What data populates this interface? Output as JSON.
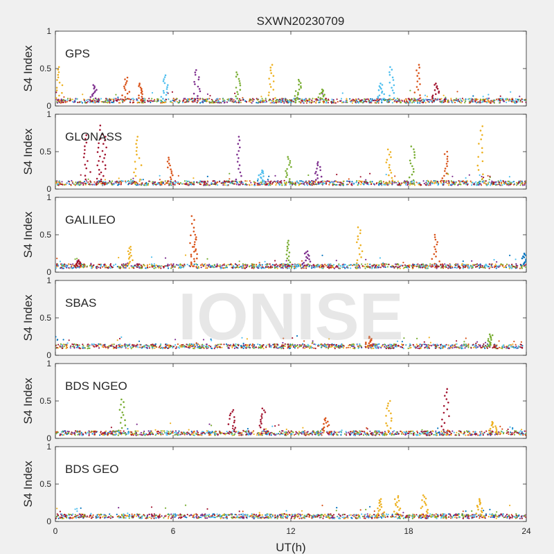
{
  "chart_data": {
    "type": "scatter",
    "title": "SXWN20230709",
    "xlabel": "UT(h)",
    "ylabel": "S4 Index",
    "xlim": [
      0,
      24
    ],
    "ylim": [
      0,
      1
    ],
    "x_ticks": [
      "0",
      "6",
      "12",
      "18",
      "24"
    ],
    "y_ticks": [
      "0",
      "0.5",
      "1"
    ],
    "grid": false,
    "watermark": "IONISE",
    "series_colors": [
      "#0072bd",
      "#d95319",
      "#edb120",
      "#7e2f8e",
      "#77ac30",
      "#4dbeee",
      "#a2142f"
    ],
    "panels": [
      {
        "name": "GPS",
        "baseline_s4": 0.07,
        "spikes": [
          {
            "ut": 0.2,
            "s4": 0.52,
            "color": "#edb120"
          },
          {
            "ut": 2.0,
            "s4": 0.28,
            "color": "#7e2f8e"
          },
          {
            "ut": 3.6,
            "s4": 0.38,
            "color": "#d95319"
          },
          {
            "ut": 4.3,
            "s4": 0.3,
            "color": "#d95319"
          },
          {
            "ut": 5.6,
            "s4": 0.41,
            "color": "#4dbeee"
          },
          {
            "ut": 7.2,
            "s4": 0.48,
            "color": "#7e2f8e"
          },
          {
            "ut": 9.3,
            "s4": 0.45,
            "color": "#77ac30"
          },
          {
            "ut": 11.0,
            "s4": 0.55,
            "color": "#edb120"
          },
          {
            "ut": 12.4,
            "s4": 0.35,
            "color": "#77ac30"
          },
          {
            "ut": 13.6,
            "s4": 0.22,
            "color": "#77ac30"
          },
          {
            "ut": 16.6,
            "s4": 0.3,
            "color": "#4dbeee"
          },
          {
            "ut": 17.1,
            "s4": 0.52,
            "color": "#4dbeee"
          },
          {
            "ut": 18.5,
            "s4": 0.55,
            "color": "#d95319"
          },
          {
            "ut": 19.4,
            "s4": 0.3,
            "color": "#a2142f"
          }
        ]
      },
      {
        "name": "GLONASS",
        "baseline_s4": 0.08,
        "spikes": [
          {
            "ut": 1.6,
            "s4": 0.72,
            "color": "#a2142f"
          },
          {
            "ut": 2.3,
            "s4": 0.85,
            "color": "#a2142f"
          },
          {
            "ut": 2.5,
            "s4": 0.7,
            "color": "#a2142f"
          },
          {
            "ut": 4.2,
            "s4": 0.7,
            "color": "#edb120"
          },
          {
            "ut": 5.8,
            "s4": 0.42,
            "color": "#d95319"
          },
          {
            "ut": 9.4,
            "s4": 0.7,
            "color": "#7e2f8e"
          },
          {
            "ut": 10.5,
            "s4": 0.25,
            "color": "#4dbeee"
          },
          {
            "ut": 11.9,
            "s4": 0.43,
            "color": "#77ac30"
          },
          {
            "ut": 13.4,
            "s4": 0.36,
            "color": "#7e2f8e"
          },
          {
            "ut": 17.0,
            "s4": 0.53,
            "color": "#edb120"
          },
          {
            "ut": 18.2,
            "s4": 0.57,
            "color": "#77ac30"
          },
          {
            "ut": 19.9,
            "s4": 0.5,
            "color": "#d95319"
          },
          {
            "ut": 21.7,
            "s4": 0.84,
            "color": "#edb120"
          }
        ]
      },
      {
        "name": "GALILEO",
        "baseline_s4": 0.08,
        "spikes": [
          {
            "ut": 1.2,
            "s4": 0.16,
            "color": "#a2142f"
          },
          {
            "ut": 3.8,
            "s4": 0.34,
            "color": "#edb120"
          },
          {
            "ut": 7.0,
            "s4": 0.75,
            "color": "#d95319"
          },
          {
            "ut": 7.1,
            "s4": 0.5,
            "color": "#d95319"
          },
          {
            "ut": 11.9,
            "s4": 0.42,
            "color": "#77ac30"
          },
          {
            "ut": 12.8,
            "s4": 0.28,
            "color": "#7e2f8e"
          },
          {
            "ut": 15.5,
            "s4": 0.6,
            "color": "#edb120"
          },
          {
            "ut": 19.4,
            "s4": 0.5,
            "color": "#d95319"
          },
          {
            "ut": 23.9,
            "s4": 0.25,
            "color": "#0072bd"
          }
        ]
      },
      {
        "name": "SBAS",
        "baseline_s4": 0.12,
        "spikes": [
          {
            "ut": 16.0,
            "s4": 0.25,
            "color": "#d95319"
          },
          {
            "ut": 22.2,
            "s4": 0.28,
            "color": "#77ac30"
          }
        ]
      },
      {
        "name": "BDS NGEO",
        "baseline_s4": 0.07,
        "spikes": [
          {
            "ut": 3.4,
            "s4": 0.52,
            "color": "#77ac30"
          },
          {
            "ut": 9.0,
            "s4": 0.38,
            "color": "#a2142f"
          },
          {
            "ut": 10.6,
            "s4": 0.4,
            "color": "#a2142f"
          },
          {
            "ut": 13.8,
            "s4": 0.27,
            "color": "#d95319"
          },
          {
            "ut": 17.0,
            "s4": 0.5,
            "color": "#edb120"
          },
          {
            "ut": 19.9,
            "s4": 0.66,
            "color": "#a2142f"
          },
          {
            "ut": 22.3,
            "s4": 0.22,
            "color": "#edb120"
          }
        ]
      },
      {
        "name": "BDS GEO",
        "baseline_s4": 0.07,
        "spikes": [
          {
            "ut": 16.6,
            "s4": 0.3,
            "color": "#edb120"
          },
          {
            "ut": 17.4,
            "s4": 0.34,
            "color": "#edb120"
          },
          {
            "ut": 18.8,
            "s4": 0.35,
            "color": "#edb120"
          },
          {
            "ut": 21.6,
            "s4": 0.3,
            "color": "#edb120"
          }
        ]
      }
    ]
  }
}
